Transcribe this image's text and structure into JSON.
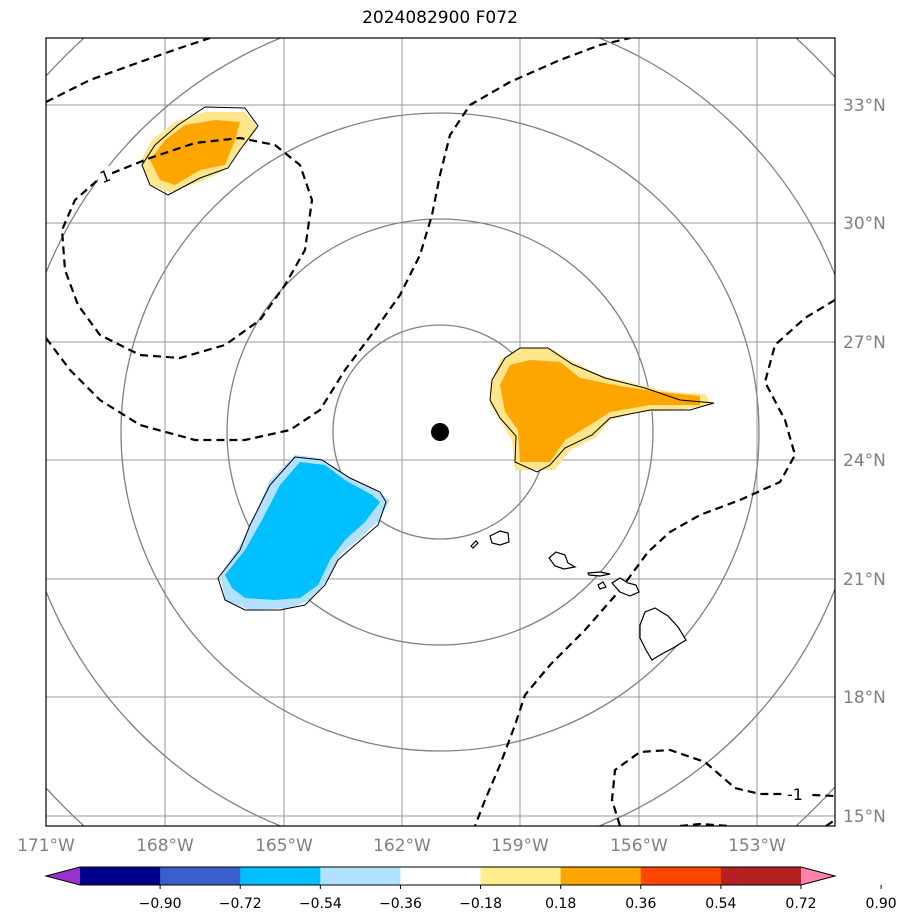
{
  "title": "2024082900 F072",
  "colors": {
    "grid": "#999999",
    "range_rings": "#808080",
    "coast": "#000000",
    "pos_light": "#ffe68c",
    "pos_mid": "#ffa500",
    "neg_light": "#b3e0ff",
    "neg_mid": "#00bfff"
  },
  "map": {
    "lon_labels": [
      "171°W",
      "168°W",
      "165°W",
      "162°W",
      "159°W",
      "156°W",
      "153°W"
    ],
    "lat_labels": [
      "33°N",
      "30°N",
      "27°N",
      "24°N",
      "21°N",
      "18°N",
      "15°N"
    ],
    "contour_label": "1",
    "contour_label_2": "-1",
    "center_marker": "storm-center-dot"
  },
  "colorbar": {
    "ticks": [
      "−0.90",
      "−0.72",
      "−0.54",
      "−0.36",
      "−0.18",
      "0.18",
      "0.36",
      "0.54",
      "0.72",
      "0.90"
    ],
    "colors": [
      "#9932cc",
      "#00008b",
      "#3a5fcd",
      "#00bfff",
      "#b0e2ff",
      "#ffffff",
      "#ffec8b",
      "#ffa500",
      "#ff4500",
      "#b22222",
      "#ff82ab"
    ]
  }
}
